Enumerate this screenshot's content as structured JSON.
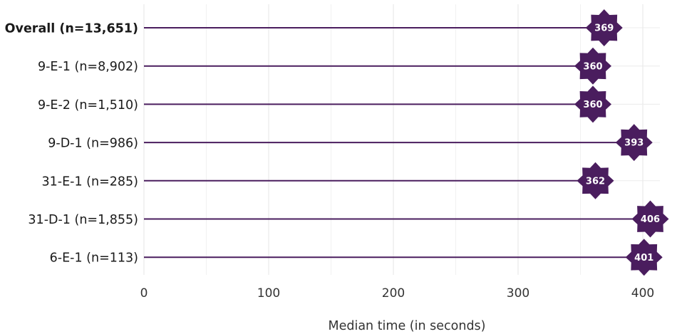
{
  "chart_data": {
    "type": "lollipop",
    "xlabel": "Median time (in seconds)",
    "xlim": [
      0,
      410
    ],
    "xticks": [
      0,
      100,
      200,
      300,
      400
    ],
    "grid": true,
    "color": "#4a1d5e",
    "categories": [
      "Overall (n=13,651)",
      "9-E-1 (n=8,902)",
      "9-E-2 (n=1,510)",
      "9-D-1 (n=986)",
      "31-E-1 (n=285)",
      "31-D-1 (n=1,855)",
      "6-E-1 (n=113)"
    ],
    "bold_categories": [
      "Overall (n=13,651)"
    ],
    "values": [
      369,
      360,
      360,
      393,
      362,
      406,
      401
    ]
  }
}
